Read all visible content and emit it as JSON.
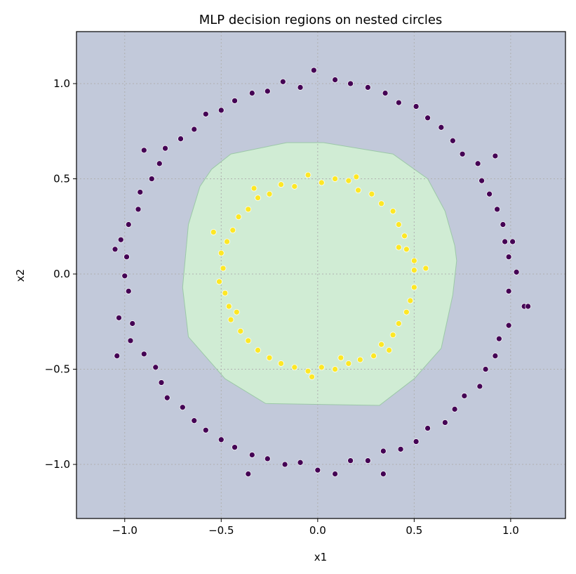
{
  "chart_data": {
    "type": "scatter",
    "title": "MLP decision regions on nested circles",
    "xlabel": "x1",
    "ylabel": "x2",
    "xlim": [
      -1.25,
      1.284
    ],
    "ylim": [
      -1.284,
      1.273
    ],
    "xticks": [
      -1.0,
      -0.5,
      0.0,
      0.5,
      1.0
    ],
    "yticks": [
      -1.0,
      -0.5,
      0.0,
      0.5,
      1.0
    ],
    "xtick_labels": [
      "−1.0",
      "−0.5",
      "0.0",
      "0.5",
      "1.0"
    ],
    "ytick_labels": [
      "−1.0",
      "−0.5",
      "0.0",
      "0.5",
      "1.0"
    ],
    "grid": true,
    "colors": {
      "background_region": "#c2c9da",
      "inner_region": "#d0ecd4",
      "class0": "#440154",
      "class1": "#fde725",
      "grid": "#b0b0b0"
    },
    "decision_region": [
      [
        -0.55,
        0.55
      ],
      [
        -0.45,
        0.63
      ],
      [
        -0.16,
        0.69
      ],
      [
        0.03,
        0.69
      ],
      [
        0.39,
        0.63
      ],
      [
        0.57,
        0.5
      ],
      [
        0.66,
        0.33
      ],
      [
        0.71,
        0.15
      ],
      [
        0.72,
        0.07
      ],
      [
        0.7,
        -0.11
      ],
      [
        0.64,
        -0.39
      ],
      [
        0.5,
        -0.55
      ],
      [
        0.32,
        -0.69
      ],
      [
        -0.27,
        -0.68
      ],
      [
        -0.48,
        -0.55
      ],
      [
        -0.67,
        -0.33
      ],
      [
        -0.7,
        -0.07
      ],
      [
        -0.67,
        0.26
      ],
      [
        -0.61,
        0.46
      ]
    ],
    "series": [
      {
        "class": 0,
        "points": [
          [
            1.03,
            0.01
          ],
          [
            0.99,
            0.09
          ],
          [
            0.97,
            0.17
          ],
          [
            0.96,
            0.26
          ],
          [
            0.93,
            0.34
          ],
          [
            0.89,
            0.42
          ],
          [
            0.85,
            0.49
          ],
          [
            0.83,
            0.58
          ],
          [
            0.75,
            0.63
          ],
          [
            0.7,
            0.7
          ],
          [
            0.64,
            0.77
          ],
          [
            0.57,
            0.82
          ],
          [
            0.51,
            0.88
          ],
          [
            0.42,
            0.9
          ],
          [
            0.35,
            0.95
          ],
          [
            0.26,
            0.98
          ],
          [
            0.17,
            1.0
          ],
          [
            0.09,
            1.02
          ],
          [
            -0.02,
            1.07
          ],
          [
            -0.09,
            0.98
          ],
          [
            -0.18,
            1.01
          ],
          [
            -0.26,
            0.96
          ],
          [
            -0.34,
            0.95
          ],
          [
            -0.43,
            0.91
          ],
          [
            -0.5,
            0.86
          ],
          [
            -0.58,
            0.84
          ],
          [
            -0.64,
            0.76
          ],
          [
            -0.71,
            0.71
          ],
          [
            -0.79,
            0.66
          ],
          [
            -0.82,
            0.58
          ],
          [
            -0.86,
            0.5
          ],
          [
            -0.92,
            0.43
          ],
          [
            -0.93,
            0.34
          ],
          [
            -0.98,
            0.26
          ],
          [
            -1.02,
            0.18
          ],
          [
            -0.99,
            0.09
          ],
          [
            -1.0,
            -0.01
          ],
          [
            -0.98,
            -0.09
          ],
          [
            -1.03,
            -0.23
          ],
          [
            -0.96,
            -0.26
          ],
          [
            -0.97,
            -0.35
          ],
          [
            -0.9,
            -0.42
          ],
          [
            -0.84,
            -0.49
          ],
          [
            -0.81,
            -0.57
          ],
          [
            -0.78,
            -0.65
          ],
          [
            -0.7,
            -0.7
          ],
          [
            -0.64,
            -0.77
          ],
          [
            -0.58,
            -0.82
          ],
          [
            -0.5,
            -0.87
          ],
          [
            -0.43,
            -0.91
          ],
          [
            -0.34,
            -0.95
          ],
          [
            -0.26,
            -0.97
          ],
          [
            -0.17,
            -1.0
          ],
          [
            -0.09,
            -0.99
          ],
          [
            0.0,
            -1.03
          ],
          [
            0.09,
            -1.05
          ],
          [
            0.17,
            -0.98
          ],
          [
            0.26,
            -0.98
          ],
          [
            0.34,
            -0.93
          ],
          [
            0.43,
            -0.92
          ],
          [
            0.51,
            -0.88
          ],
          [
            0.57,
            -0.81
          ],
          [
            0.66,
            -0.78
          ],
          [
            0.71,
            -0.71
          ],
          [
            0.76,
            -0.64
          ],
          [
            0.84,
            -0.59
          ],
          [
            0.87,
            -0.5
          ],
          [
            0.92,
            -0.43
          ],
          [
            0.94,
            -0.34
          ],
          [
            0.99,
            -0.27
          ],
          [
            1.07,
            -0.17
          ],
          [
            0.99,
            -0.09
          ],
          [
            -1.04,
            -0.43
          ],
          [
            -1.05,
            0.13
          ],
          [
            1.09,
            -0.17
          ],
          [
            -0.36,
            -1.05
          ],
          [
            0.34,
            -1.05
          ],
          [
            1.01,
            0.17
          ],
          [
            -0.9,
            0.65
          ],
          [
            0.92,
            0.62
          ]
        ]
      },
      {
        "class": 1,
        "points": [
          [
            0.5,
            0.02
          ],
          [
            0.5,
            0.07
          ],
          [
            0.46,
            0.13
          ],
          [
            0.45,
            0.2
          ],
          [
            0.42,
            0.26
          ],
          [
            0.39,
            0.33
          ],
          [
            0.33,
            0.37
          ],
          [
            0.28,
            0.42
          ],
          [
            0.21,
            0.44
          ],
          [
            0.16,
            0.49
          ],
          [
            0.09,
            0.5
          ],
          [
            0.02,
            0.48
          ],
          [
            -0.05,
            0.52
          ],
          [
            -0.12,
            0.46
          ],
          [
            -0.19,
            0.47
          ],
          [
            -0.25,
            0.42
          ],
          [
            -0.31,
            0.4
          ],
          [
            -0.36,
            0.34
          ],
          [
            -0.41,
            0.3
          ],
          [
            -0.44,
            0.23
          ],
          [
            -0.47,
            0.17
          ],
          [
            -0.5,
            0.11
          ],
          [
            -0.49,
            0.03
          ],
          [
            -0.51,
            -0.04
          ],
          [
            -0.48,
            -0.1
          ],
          [
            -0.46,
            -0.17
          ],
          [
            -0.45,
            -0.24
          ],
          [
            -0.4,
            -0.3
          ],
          [
            -0.36,
            -0.35
          ],
          [
            -0.31,
            -0.4
          ],
          [
            -0.25,
            -0.44
          ],
          [
            -0.19,
            -0.47
          ],
          [
            -0.12,
            -0.49
          ],
          [
            -0.05,
            -0.51
          ],
          [
            0.02,
            -0.49
          ],
          [
            0.09,
            -0.5
          ],
          [
            0.16,
            -0.47
          ],
          [
            0.22,
            -0.45
          ],
          [
            0.29,
            -0.43
          ],
          [
            0.33,
            -0.37
          ],
          [
            0.39,
            -0.32
          ],
          [
            0.42,
            -0.26
          ],
          [
            0.46,
            -0.2
          ],
          [
            0.48,
            -0.14
          ],
          [
            0.5,
            -0.07
          ],
          [
            -0.54,
            0.22
          ],
          [
            0.2,
            0.51
          ],
          [
            0.56,
            0.03
          ],
          [
            -0.03,
            -0.54
          ],
          [
            0.42,
            0.14
          ],
          [
            -0.42,
            -0.2
          ],
          [
            0.37,
            -0.4
          ],
          [
            -0.33,
            0.45
          ],
          [
            0.12,
            -0.44
          ]
        ]
      }
    ]
  }
}
